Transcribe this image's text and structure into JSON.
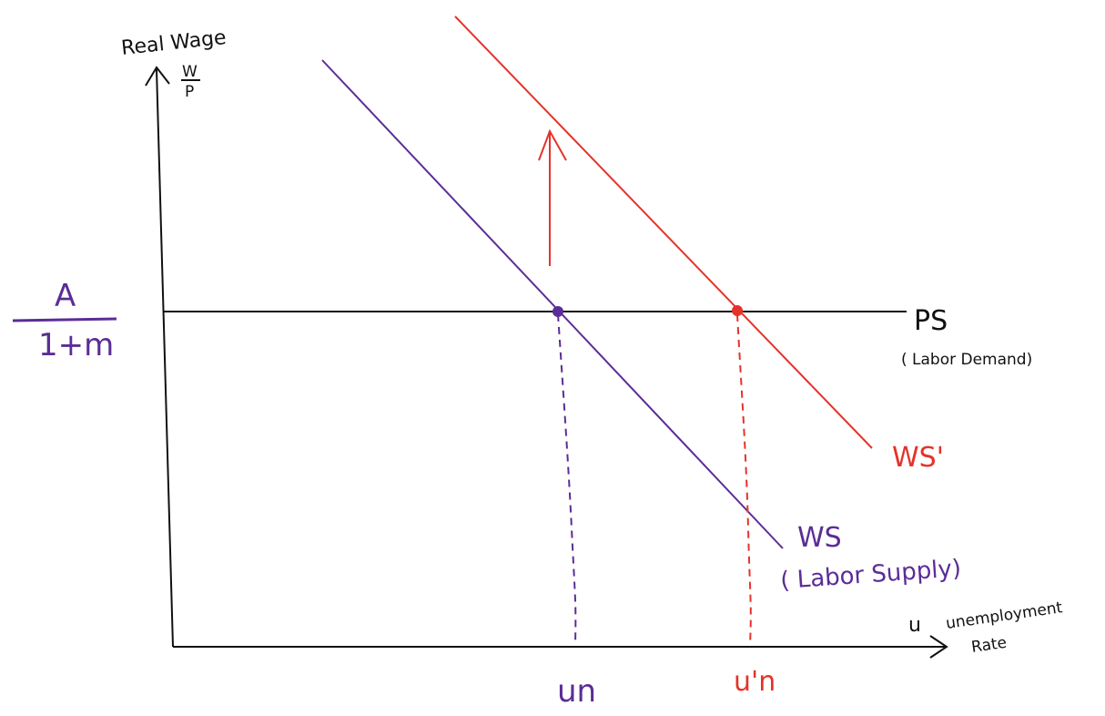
{
  "colors": {
    "axis": "#111111",
    "ws": "#5b2d96",
    "ws_prime": "#e5332a",
    "ps": "#111111"
  },
  "y_axis": {
    "title": "Real Wage",
    "fraction_num": "W",
    "fraction_den": "P"
  },
  "x_axis": {
    "symbol": "u",
    "title_line1": "unemployment",
    "title_line2": "Rate"
  },
  "markup_level": {
    "numerator": "A",
    "denominator": "1+m"
  },
  "curves": {
    "ps": {
      "label": "PS",
      "sublabel": "( Labor Demand)"
    },
    "ws": {
      "label": "WS",
      "sublabel": "( Labor Supply)"
    },
    "ws_prime": {
      "label": "WS'"
    }
  },
  "equilibria": {
    "un": {
      "label": "un"
    },
    "un_prime": {
      "label": "u'n"
    }
  },
  "shift_arrow": {
    "direction": "up",
    "icon": "up-arrow-icon"
  }
}
